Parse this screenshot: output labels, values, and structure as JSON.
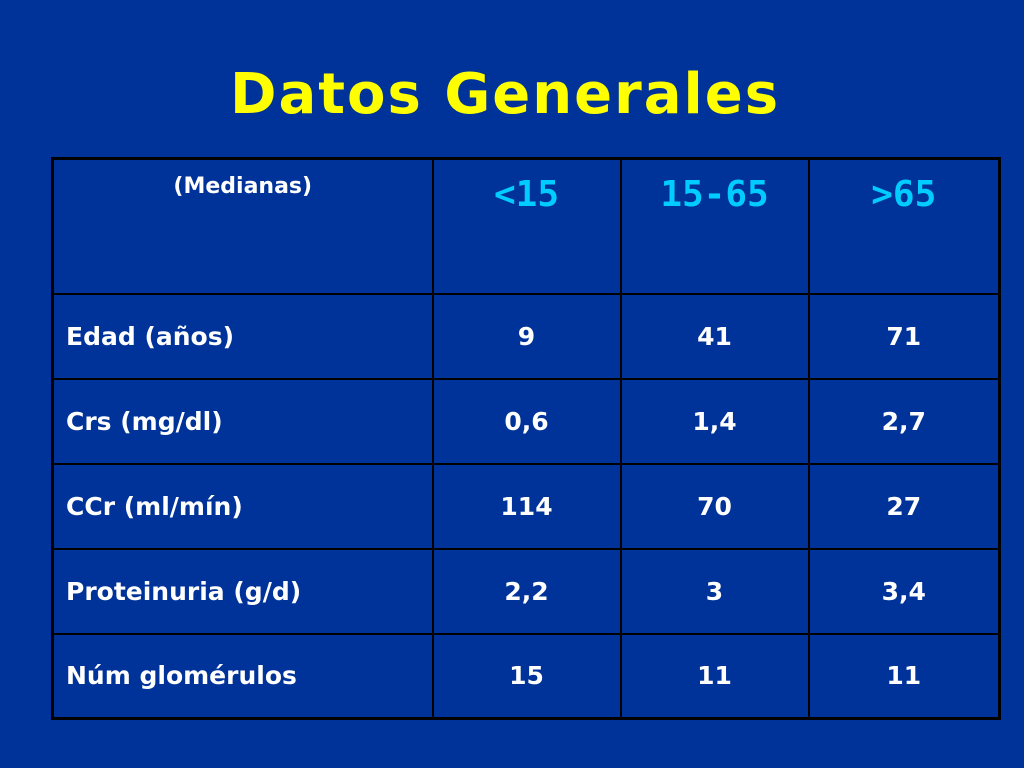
{
  "slide": {
    "title": "Datos Generales",
    "colors": {
      "background": "#003399",
      "title": "#ffff00",
      "header_text": "#00ccff",
      "body_text": "#ffffff",
      "border": "#000000"
    }
  },
  "table": {
    "corner_label": "(Medianas)",
    "headers": [
      "<15",
      "15-65",
      ">65"
    ],
    "rows": [
      {
        "label": "Edad (años)",
        "values": [
          "9",
          "41",
          "71"
        ]
      },
      {
        "label": "Crs (mg/dl)",
        "values": [
          "0,6",
          "1,4",
          "2,7"
        ]
      },
      {
        "label": "CCr (ml/mín)",
        "values": [
          "114",
          "70",
          "27"
        ]
      },
      {
        "label": "Proteinuria (g/d)",
        "values": [
          "2,2",
          "3",
          "3,4"
        ]
      },
      {
        "label": "Núm glomérulos",
        "values": [
          "15",
          "11",
          "11"
        ]
      }
    ]
  }
}
